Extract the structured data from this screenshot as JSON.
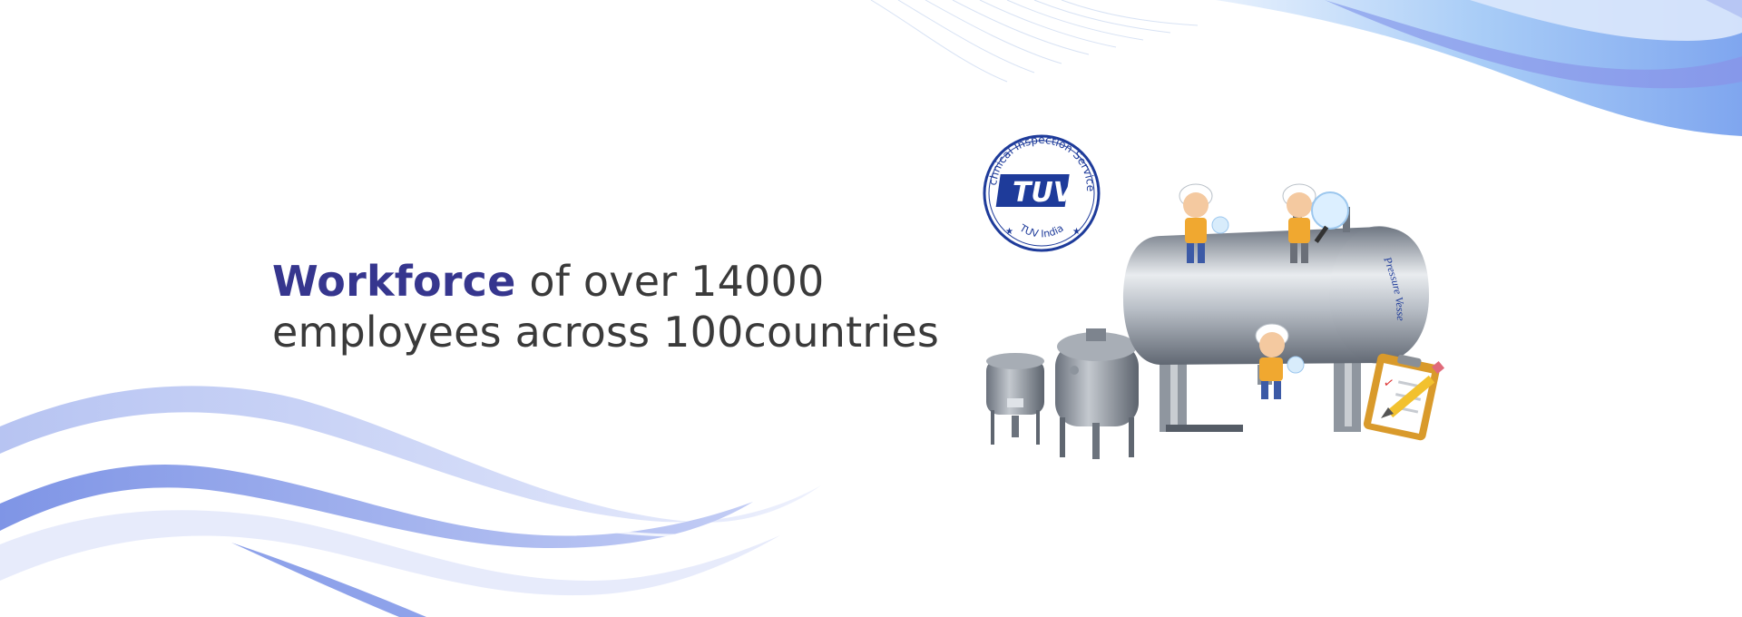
{
  "headline": {
    "line1": {
      "accent": "Workforce",
      "rest": "of over 14000"
    },
    "line2": {
      "before": "employees across",
      "number": "100",
      "after": "countries"
    }
  },
  "seal": {
    "arc_text": "Technical Inspection Services",
    "brand": "TUV",
    "bottom_text": "TUV India"
  },
  "vessel_label": "Pressure Vessels",
  "colors": {
    "accent": "#36368e",
    "text": "#3a3a3a",
    "wave_light": "#c9d3f5",
    "wave_mid": "#8ea7ee",
    "wave_blue": "#7fb6f2",
    "seal_blue": "#1e3b9a",
    "steel": "#9aa1ab"
  },
  "icons": [
    "wave-decoration",
    "tuv-seal-logo",
    "pressure-vessel",
    "worker-figure",
    "clipboard-icon",
    "pencil-icon"
  ]
}
